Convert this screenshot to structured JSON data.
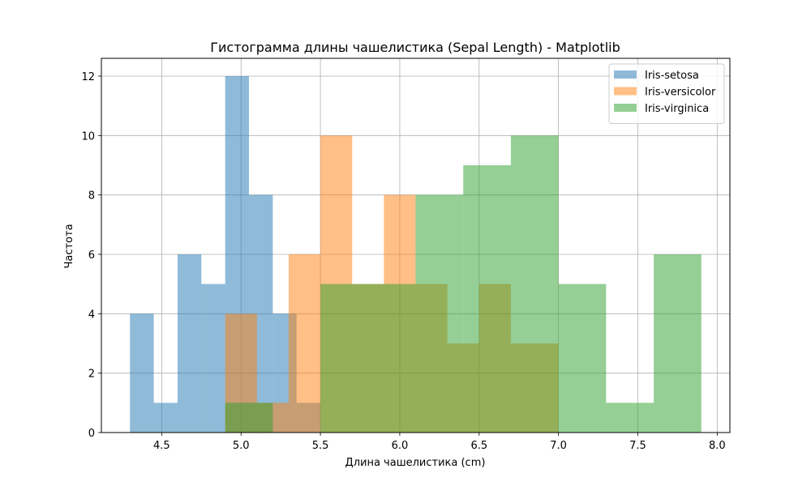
{
  "chart_data": {
    "type": "histogram",
    "title": "Гистограмма длины чашелистика (Sepal Length) - Matplotlib",
    "xlabel": "Длина чашелистика (cm)",
    "ylabel": "Частота",
    "xlim": [
      4.12,
      8.08
    ],
    "ylim": [
      0,
      12.6
    ],
    "xticks": [
      4.5,
      5.0,
      5.5,
      6.0,
      6.5,
      7.0,
      7.5,
      8.0
    ],
    "xtick_labels": [
      "4.5",
      "5.0",
      "5.5",
      "6.0",
      "6.5",
      "7.0",
      "7.5",
      "8.0"
    ],
    "yticks": [
      0,
      2,
      4,
      6,
      8,
      10,
      12
    ],
    "ytick_labels": [
      "0",
      "2",
      "4",
      "6",
      "8",
      "10",
      "12"
    ],
    "grid": true,
    "legend_position": "top-right",
    "series": [
      {
        "name": "Iris-setosa",
        "color": "#1f77b4",
        "bin_edges": [
          4.3,
          4.45,
          4.6,
          4.75,
          4.9,
          5.05,
          5.2,
          5.35,
          5.5,
          5.65,
          5.8
        ],
        "counts": [
          4,
          1,
          6,
          5,
          12,
          8,
          4,
          1,
          0,
          0
        ]
      },
      {
        "name": "Iris-versicolor",
        "color": "#ff7f0e",
        "bin_edges": [
          4.9,
          5.1,
          5.3,
          5.5,
          5.7,
          5.9,
          6.1,
          6.3,
          6.5,
          6.7,
          7.0
        ],
        "counts": [
          4,
          1,
          6,
          10,
          5,
          8,
          5,
          3,
          5,
          3
        ]
      },
      {
        "name": "Iris-virginica",
        "color": "#2ca02c",
        "bin_edges": [
          4.9,
          5.2,
          5.5,
          5.8,
          6.1,
          6.4,
          6.7,
          7.0,
          7.3,
          7.6,
          7.9
        ],
        "counts": [
          1,
          0,
          5,
          5,
          8,
          9,
          10,
          5,
          1,
          6
        ]
      }
    ]
  }
}
